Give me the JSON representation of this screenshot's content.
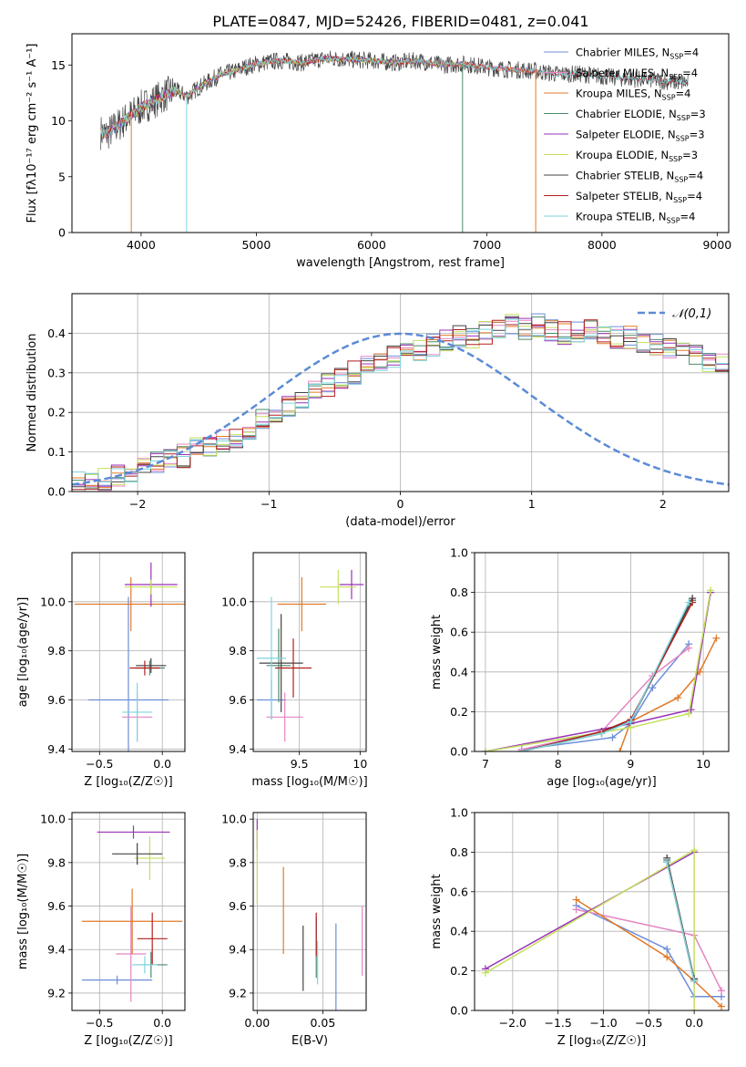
{
  "figure_title": "PLATE=0847, MJD=52426, FIBERID=0481, z=0.041",
  "colors": [
    "#6d8ed9",
    "#e485c2",
    "#e07a28",
    "#4c8a6b",
    "#9a32b8",
    "#c4e05e",
    "#444444",
    "#b21e1e",
    "#7fd5df"
  ],
  "chart_data": [
    {
      "id": "spectrum",
      "type": "line",
      "xlabel": "wavelength [Angstrom, rest frame]",
      "ylabel": "Flux [fλ10⁻¹⁷ erg cm⁻² s⁻¹ A⁻¹]",
      "xlim": [
        3400,
        9100
      ],
      "ylim": [
        0,
        17.8
      ],
      "xticks": [
        4000,
        5000,
        6000,
        7000,
        8000,
        9000
      ],
      "yticks": [
        0,
        5,
        10,
        15
      ],
      "grid": false,
      "legend_position": "upper right",
      "data": {
        "x": [
          3650,
          3700,
          3800,
          3900,
          4000,
          4100,
          4200,
          4300,
          4400,
          4500,
          4600,
          4700,
          4800,
          4900,
          5000,
          5200,
          5400,
          5600,
          5800,
          6000,
          6200,
          6400,
          6600,
          6800,
          7000,
          7200,
          7400,
          7600,
          7800,
          8000,
          8200,
          8400,
          8600,
          8800,
          9000
        ],
        "y": [
          9.0,
          8.8,
          9.6,
          10.4,
          11.2,
          11.7,
          12.3,
          12.7,
          12.2,
          13.0,
          13.6,
          14.2,
          14.4,
          14.8,
          15.1,
          15.4,
          15.2,
          15.6,
          15.5,
          15.4,
          15.2,
          15.4,
          15.0,
          15.1,
          14.8,
          14.6,
          14.5,
          14.2,
          14.2,
          14.0,
          13.8,
          13.7,
          13.5,
          13.4,
          13.3
        ]
      },
      "series": [
        {
          "name": "Chabrier MILES, N_SSP=4",
          "x_end": 7450
        },
        {
          "name": "Salpeter MILES, N_SSP=4",
          "x_end": 7450
        },
        {
          "name": "Kroupa MILES, N_SSP=4",
          "x_end": 7450
        },
        {
          "name": "Chabrier ELODIE, N_SSP=3",
          "x_end": 6800
        },
        {
          "name": "Salpeter ELODIE, N_SSP=3",
          "x_end": 6800
        },
        {
          "name": "Kroupa ELODIE, N_SSP=3",
          "x_end": 6800
        },
        {
          "name": "Chabrier STELIB, N_SSP=4",
          "x_end": 8750
        },
        {
          "name": "Salpeter STELIB, N_SSP=4",
          "x_end": 8750
        },
        {
          "name": "Kroupa STELIB, N_SSP=4",
          "x_end": 8750
        }
      ]
    },
    {
      "id": "residuals",
      "type": "histogram",
      "xlabel": "(data-model)/error",
      "ylabel": "Normed distribution",
      "xlim": [
        -2.5,
        2.5
      ],
      "ylim": [
        0,
        0.5
      ],
      "xticks": [
        -2,
        -1,
        0,
        1,
        2
      ],
      "yticks": [
        0.0,
        0.1,
        0.2,
        0.3,
        0.4
      ],
      "grid": true,
      "legend": "𝒩(0,1)",
      "legend_position": "upper right",
      "bin_width": 0.1,
      "bin_start": -2.5,
      "hist": [
        0.02,
        0.02,
        0.03,
        0.04,
        0.05,
        0.06,
        0.07,
        0.09,
        0.09,
        0.11,
        0.12,
        0.13,
        0.14,
        0.16,
        0.18,
        0.2,
        0.22,
        0.24,
        0.26,
        0.27,
        0.29,
        0.3,
        0.32,
        0.33,
        0.34,
        0.35,
        0.36,
        0.37,
        0.38,
        0.39,
        0.39,
        0.4,
        0.41,
        0.42,
        0.41,
        0.42,
        0.41,
        0.4,
        0.4,
        0.41,
        0.4,
        0.39,
        0.39,
        0.37,
        0.37,
        0.36,
        0.35,
        0.34,
        0.33,
        0.32,
        0.31,
        0.3,
        0.28,
        0.27,
        0.26,
        0.24,
        0.23,
        0.21,
        0.2,
        0.18,
        0.17,
        0.16,
        0.14,
        0.13,
        0.12,
        0.11,
        0.1,
        0.09,
        0.08,
        0.07,
        0.06,
        0.06,
        0.05,
        0.05,
        0.04,
        0.04,
        0.03,
        0.03,
        0.03,
        0.02
      ]
    },
    {
      "id": "age_vs_Z",
      "type": "errorbar",
      "xlabel": "Z [log₁₀(Z/Z☉)]",
      "ylabel": "age  [log₁₀(age/yr)]",
      "xlim": [
        -0.72,
        0.18
      ],
      "ylim": [
        9.39,
        10.2
      ],
      "xticks": [
        -0.5,
        0.0
      ],
      "xticklabels": [
        "−0.5",
        "0.0"
      ],
      "yticks": [
        9.4,
        9.6,
        9.8,
        10.0
      ],
      "grid": true,
      "points": [
        {
          "x": -0.27,
          "xerr": 0.32,
          "y": 9.6,
          "yerr": 0.42
        },
        {
          "x": -0.2,
          "xerr": 0.12,
          "y": 9.53,
          "yerr": 0.1
        },
        {
          "x": -0.25,
          "xerr": 0.45,
          "y": 9.99,
          "yerr": 0.11
        },
        {
          "x": -0.1,
          "xerr": 0.12,
          "y": 9.73,
          "yerr": 0.03
        },
        {
          "x": -0.09,
          "xerr": 0.21,
          "y": 10.07,
          "yerr": 0.09
        },
        {
          "x": -0.09,
          "xerr": 0.21,
          "y": 10.06,
          "yerr": 0.03
        },
        {
          "x": -0.09,
          "xerr": 0.12,
          "y": 9.74,
          "yerr": 0.03
        },
        {
          "x": -0.14,
          "xerr": 0.12,
          "y": 9.73,
          "yerr": 0.03
        },
        {
          "x": -0.2,
          "xerr": 0.12,
          "y": 9.55,
          "yerr": 0.12
        }
      ]
    },
    {
      "id": "age_vs_mass",
      "type": "errorbar",
      "xlabel": "mass [log₁₀(M/M☉)]",
      "ylabel": "",
      "xlim": [
        9.12,
        10.05
      ],
      "ylim": [
        9.39,
        10.2
      ],
      "xticks": [
        9.5,
        10.0
      ],
      "yticks": [
        9.4,
        9.6,
        9.8,
        10.0
      ],
      "grid": true,
      "points": [
        {
          "x": 9.27,
          "xerr": 0.12,
          "y": 9.6,
          "yerr": 0.08
        },
        {
          "x": 9.38,
          "xerr": 0.15,
          "y": 9.53,
          "yerr": 0.1
        },
        {
          "x": 9.52,
          "xerr": 0.2,
          "y": 9.99,
          "yerr": 0.11
        },
        {
          "x": 9.33,
          "xerr": 0.1,
          "y": 9.74,
          "yerr": 0.15
        },
        {
          "x": 9.93,
          "xerr": 0.1,
          "y": 10.07,
          "yerr": 0.06
        },
        {
          "x": 9.82,
          "xerr": 0.15,
          "y": 10.06,
          "yerr": 0.07
        },
        {
          "x": 9.35,
          "xerr": 0.18,
          "y": 9.75,
          "yerr": 0.2
        },
        {
          "x": 9.45,
          "xerr": 0.15,
          "y": 9.73,
          "yerr": 0.12
        },
        {
          "x": 9.27,
          "xerr": 0.12,
          "y": 9.77,
          "yerr": 0.25
        }
      ]
    },
    {
      "id": "weight_vs_age",
      "type": "line",
      "xlabel": "age  [log₁₀(age/yr)]",
      "ylabel": "mass weight",
      "xlim": [
        6.85,
        10.35
      ],
      "ylim": [
        0,
        1.0
      ],
      "xticks": [
        7,
        8,
        9,
        10
      ],
      "yticks": [
        0.0,
        0.2,
        0.4,
        0.6,
        0.8,
        1.0
      ],
      "grid": true,
      "series": [
        {
          "x": [
            7.5,
            8.75,
            9.0,
            9.3,
            9.8
          ],
          "y": [
            0.01,
            0.07,
            0.14,
            0.32,
            0.54
          ]
        },
        {
          "x": [
            7.5,
            8.6,
            9.3,
            9.8
          ],
          "y": [
            0.01,
            0.1,
            0.38,
            0.52
          ]
        },
        {
          "x": [
            8.85,
            9.0,
            9.65,
            9.95,
            10.18
          ],
          "y": [
            0.0,
            0.15,
            0.27,
            0.4,
            0.57
          ]
        },
        {
          "x": [
            7.5,
            8.6,
            9.0,
            9.85
          ],
          "y": [
            0.0,
            0.09,
            0.15,
            0.76
          ]
        },
        {
          "x": [
            7.0,
            9.0,
            9.83,
            10.1
          ],
          "y": [
            0.0,
            0.14,
            0.21,
            0.8
          ]
        },
        {
          "x": [
            7.0,
            9.0,
            9.8,
            10.1
          ],
          "y": [
            0.0,
            0.12,
            0.19,
            0.81
          ]
        },
        {
          "x": [
            7.5,
            8.6,
            9.0,
            9.85
          ],
          "y": [
            0.0,
            0.1,
            0.15,
            0.77
          ]
        },
        {
          "x": [
            7.5,
            8.6,
            9.0,
            9.85
          ],
          "y": [
            0.0,
            0.1,
            0.16,
            0.75
          ]
        },
        {
          "x": [
            7.5,
            8.6,
            9.0,
            9.8
          ],
          "y": [
            0.0,
            0.09,
            0.15,
            0.75
          ]
        }
      ]
    },
    {
      "id": "mass_vs_Z",
      "type": "errorbar",
      "xlabel": "Z [log₁₀(Z/Z☉)]",
      "ylabel": "mass [log₁₀(M/M☉)]",
      "xlim": [
        -0.72,
        0.18
      ],
      "ylim": [
        9.12,
        10.03
      ],
      "xticks": [
        -0.5,
        0.0
      ],
      "xticklabels": [
        "−0.5",
        "0.0"
      ],
      "yticks": [
        9.2,
        9.4,
        9.6,
        9.8,
        10.0
      ],
      "grid": true,
      "points": [
        {
          "x": -0.36,
          "xerr": 0.28,
          "y": 9.26,
          "yerr": 0.02
        },
        {
          "x": -0.25,
          "xerr": 0.12,
          "y": 9.38,
          "yerr": 0.22
        },
        {
          "x": -0.24,
          "xerr": 0.4,
          "y": 9.53,
          "yerr": 0.15
        },
        {
          "x": -0.09,
          "xerr": 0.13,
          "y": 9.33,
          "yerr": 0.06
        },
        {
          "x": -0.23,
          "xerr": 0.29,
          "y": 9.94,
          "yerr": 0.03
        },
        {
          "x": -0.1,
          "xerr": 0.12,
          "y": 9.82,
          "yerr": 0.1
        },
        {
          "x": -0.2,
          "xerr": 0.2,
          "y": 9.84,
          "yerr": 0.05
        },
        {
          "x": -0.08,
          "xerr": 0.12,
          "y": 9.45,
          "yerr": 0.12
        },
        {
          "x": -0.14,
          "xerr": 0.1,
          "y": 9.33,
          "yerr": 0.04
        }
      ]
    },
    {
      "id": "mass_vs_EBV",
      "type": "errorbar",
      "xlabel": "E(B-V)",
      "ylabel": "",
      "xlim": [
        -0.003,
        0.083
      ],
      "ylim": [
        9.12,
        10.03
      ],
      "xticks": [
        0.0,
        0.05
      ],
      "xticklabels": [
        "0.00",
        "0.05"
      ],
      "yticks": [
        9.2,
        9.4,
        9.6,
        9.8,
        10.0
      ],
      "grid": true,
      "points": [
        {
          "x": 0.06,
          "xerr": 0,
          "y": 9.27,
          "yerr": 0.25
        },
        {
          "x": 0.08,
          "xerr": 0,
          "y": 9.44,
          "yerr": 0.16
        },
        {
          "x": 0.02,
          "xerr": 0,
          "y": 9.58,
          "yerr": 0.2
        },
        {
          "x": 0.045,
          "xerr": 0,
          "y": 9.41,
          "yerr": 0.14
        },
        {
          "x": 0.0,
          "xerr": 0,
          "y": 9.93,
          "yerr": 0.07
        },
        {
          "x": 0.0,
          "xerr": 0,
          "y": 9.78,
          "yerr": 0.17
        },
        {
          "x": 0.035,
          "xerr": 0,
          "y": 9.36,
          "yerr": 0.15
        },
        {
          "x": 0.045,
          "xerr": 0,
          "y": 9.47,
          "yerr": 0.1
        },
        {
          "x": 0.046,
          "xerr": 0,
          "y": 9.34,
          "yerr": 0.1
        }
      ]
    },
    {
      "id": "weight_vs_Z",
      "type": "line",
      "xlabel": "Z [log₁₀(Z/Z☉)]",
      "ylabel": "mass weight",
      "xlim": [
        -2.42,
        0.38
      ],
      "ylim": [
        0,
        1.0
      ],
      "xticks": [
        -2.0,
        -1.5,
        -1.0,
        -0.5,
        0.0
      ],
      "xticklabels": [
        "−2.0",
        "−1.5",
        "−1.0",
        "−0.5",
        "0.0"
      ],
      "yticks": [
        0.0,
        0.2,
        0.4,
        0.6,
        0.8,
        1.0
      ],
      "grid": true,
      "series": [
        {
          "x": [
            -1.3,
            -0.3,
            0.0,
            0.3
          ],
          "y": [
            0.53,
            0.31,
            0.07,
            0.07
          ]
        },
        {
          "x": [
            -1.3,
            0.0,
            0.3
          ],
          "y": [
            0.51,
            0.38,
            0.1
          ]
        },
        {
          "x": [
            -1.3,
            -0.3,
            0.0,
            0.3
          ],
          "y": [
            0.56,
            0.27,
            0.15,
            0.02
          ]
        },
        {
          "x": [
            -0.3,
            0.0
          ],
          "y": [
            0.76,
            0.15
          ]
        },
        {
          "x": [
            -2.3,
            0.0
          ],
          "y": [
            0.21,
            0.8
          ]
        },
        {
          "x": [
            -2.3,
            0.0,
            0.0
          ],
          "y": [
            0.19,
            0.81,
            0.0
          ]
        },
        {
          "x": [
            -0.3,
            0.0
          ],
          "y": [
            0.77,
            0.16
          ]
        },
        {
          "x": [
            -0.3,
            0.0
          ],
          "y": [
            0.75,
            0.15
          ]
        },
        {
          "x": [
            -0.3,
            0.0
          ],
          "y": [
            0.75,
            0.15
          ]
        }
      ]
    }
  ]
}
